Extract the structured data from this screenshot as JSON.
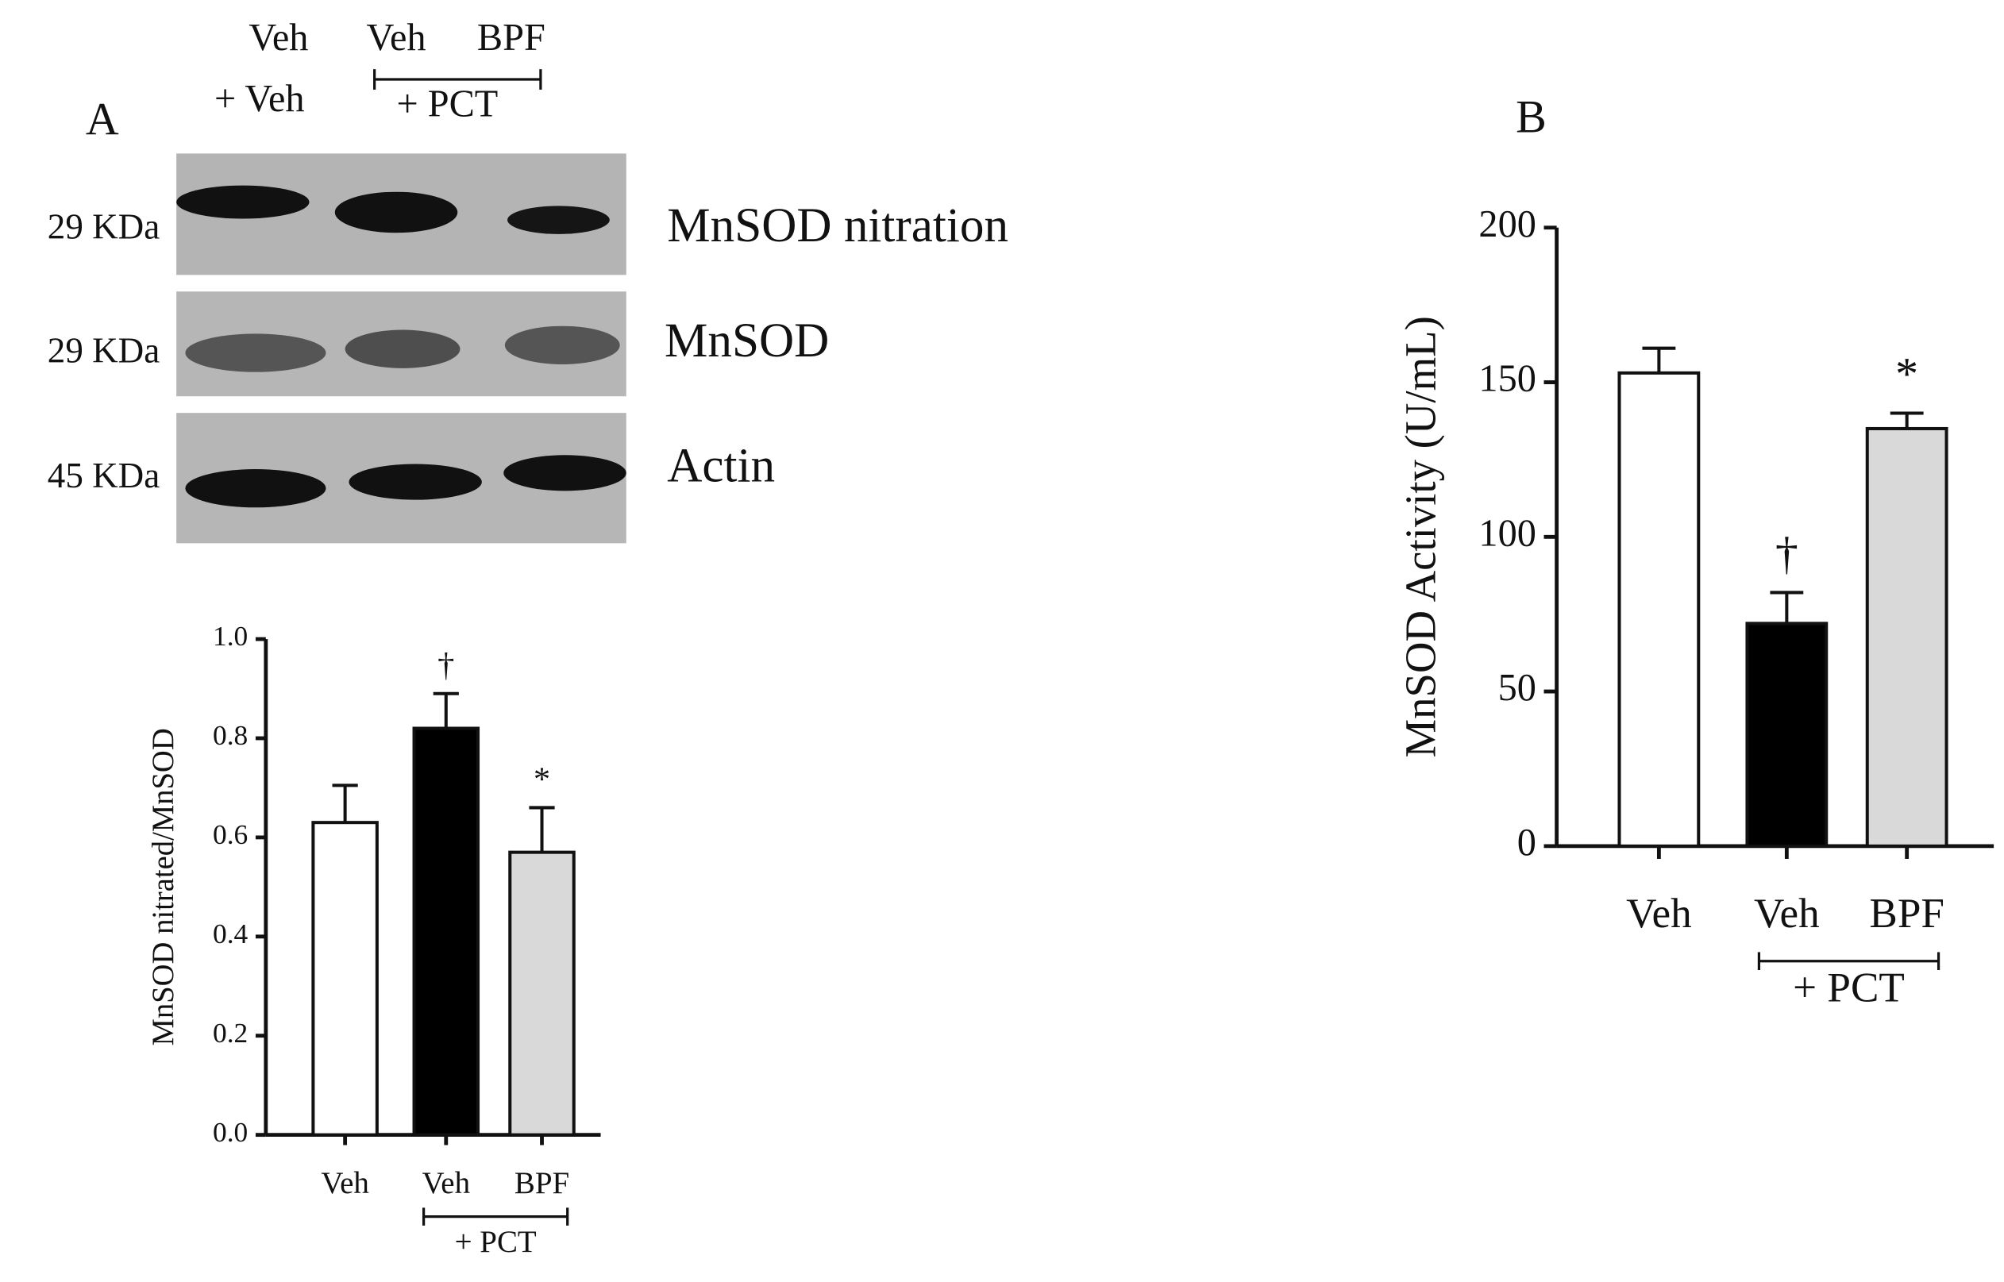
{
  "panels": [
    "A",
    "B"
  ],
  "blot": {
    "lane_headers": [
      [
        "Veh",
        "+ Veh"
      ],
      [
        "Veh"
      ],
      [
        "BPF"
      ]
    ],
    "group_label": "+ PCT",
    "rows": [
      {
        "marker": "29 KDa",
        "label": "MnSOD nitration"
      },
      {
        "marker": "29 KDa",
        "label": "MnSOD"
      },
      {
        "marker": "45 KDa",
        "label": "Actin"
      }
    ]
  },
  "chart_data": [
    {
      "type": "bar",
      "ylabel": "MnSOD nitrated/MnSOD",
      "categories": [
        "Veh",
        "Veh",
        "BPF"
      ],
      "group_label": "+ PCT",
      "values": [
        0.63,
        0.82,
        0.57
      ],
      "errors": [
        0.075,
        0.07,
        0.09
      ],
      "colors": [
        "#ffffff",
        "#000000",
        "#d9d9d9"
      ],
      "bar_annotations": [
        null,
        "†",
        "*"
      ],
      "ylim": [
        0,
        1
      ],
      "yticks": [
        {
          "value": 0,
          "label": "0.0"
        },
        {
          "value": 0.2,
          "label": "0.2"
        },
        {
          "value": 0.4,
          "label": "0.4"
        },
        {
          "value": 0.6,
          "label": "0.6"
        },
        {
          "value": 0.8,
          "label": "0.8"
        },
        {
          "value": 1,
          "label": "1.0"
        }
      ]
    },
    {
      "type": "bar",
      "ylabel": "MnSOD Activity (U/mL)",
      "categories": [
        "Veh",
        "Veh",
        "BPF"
      ],
      "group_label": "+ PCT",
      "values": [
        153,
        72,
        135
      ],
      "errors": [
        8,
        10,
        5
      ],
      "colors": [
        "#ffffff",
        "#000000",
        "#d9d9d9"
      ],
      "bar_annotations": [
        null,
        "†",
        "*"
      ],
      "ylim": [
        0,
        200
      ],
      "yticks": [
        0,
        50,
        100,
        150,
        200
      ]
    }
  ]
}
